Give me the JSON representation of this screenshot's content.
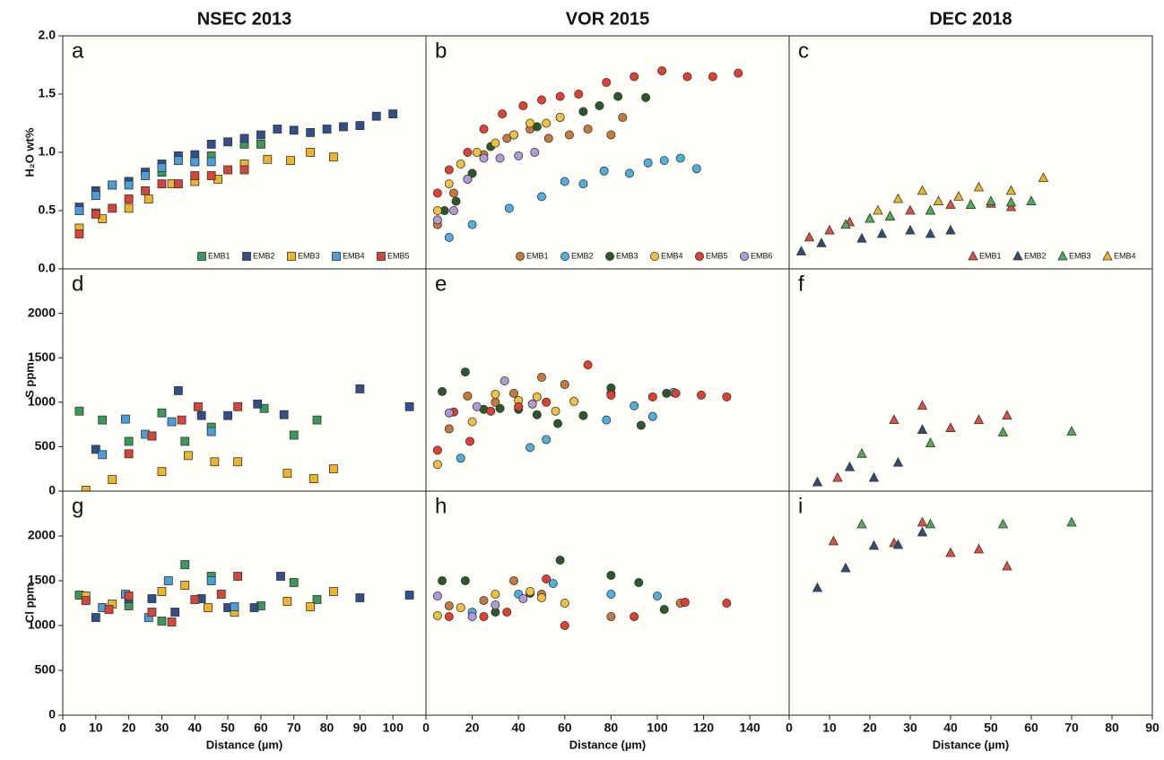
{
  "chart_data": [
    {
      "type": "scatter",
      "label": "a",
      "title": "NSEC 2013",
      "ylabel": "H₂O wt%",
      "marker": "square",
      "legend": "bottom right",
      "xlim": [
        0,
        110
      ],
      "ylim": [
        0,
        2
      ],
      "yticks": [
        {
          "value": 0,
          "label": "0.0"
        },
        0.5,
        {
          "value": 1,
          "label": "1.0"
        },
        1.5,
        {
          "value": 2,
          "label": "2.0"
        }
      ],
      "series": [
        {
          "name": "EMB1",
          "color": "#3a9a5a",
          "x": [
            5,
            10,
            20,
            30,
            40,
            45,
            55,
            60
          ],
          "y": [
            0.5,
            0.48,
            0.75,
            0.83,
            0.92,
            0.97,
            1.07,
            1.07
          ]
        },
        {
          "name": "EMB2",
          "color": "#2f4f8f",
          "x": [
            5,
            10,
            15,
            20,
            25,
            30,
            35,
            40,
            45,
            50,
            55,
            60,
            65,
            70,
            75,
            80,
            85,
            90,
            95,
            100
          ],
          "y": [
            0.53,
            0.67,
            0.72,
            0.75,
            0.83,
            0.9,
            0.97,
            0.98,
            1.07,
            1.09,
            1.12,
            1.15,
            1.2,
            1.19,
            1.17,
            1.2,
            1.22,
            1.23,
            1.31,
            1.33
          ]
        },
        {
          "name": "EMB3",
          "color": "#f0b429",
          "x": [
            5,
            12,
            20,
            26,
            33,
            40,
            47,
            55,
            62,
            69,
            75,
            82
          ],
          "y": [
            0.35,
            0.43,
            0.52,
            0.6,
            0.73,
            0.75,
            0.77,
            0.9,
            0.94,
            0.93,
            1.0,
            0.96
          ]
        },
        {
          "name": "EMB4",
          "color": "#4a9fd8",
          "x": [
            5,
            10,
            15,
            20,
            25,
            30,
            35,
            40,
            45
          ],
          "y": [
            0.5,
            0.63,
            0.72,
            0.72,
            0.8,
            0.87,
            0.93,
            0.92,
            0.92
          ]
        },
        {
          "name": "EMB5",
          "color": "#d9443a",
          "x": [
            5,
            10,
            15,
            20,
            25,
            30,
            35,
            40,
            45,
            50,
            55
          ],
          "y": [
            0.3,
            0.47,
            0.52,
            0.6,
            0.67,
            0.73,
            0.73,
            0.8,
            0.8,
            0.85,
            0.85
          ]
        }
      ]
    },
    {
      "type": "scatter",
      "label": "b",
      "title": "VOR 2015",
      "marker": "circle",
      "legend": "bottom right",
      "xlim": [
        0,
        157
      ],
      "ylim": [
        0,
        2
      ],
      "series": [
        {
          "name": "EMB1",
          "color": "#c87a3a",
          "x": [
            5,
            12,
            18,
            25,
            35,
            45,
            53,
            62,
            70,
            80,
            85
          ],
          "y": [
            0.38,
            0.65,
            0.77,
            0.98,
            1.12,
            1.2,
            1.12,
            1.15,
            1.2,
            1.15,
            1.3
          ]
        },
        {
          "name": "EMB2",
          "color": "#4fb0e0",
          "x": [
            10,
            20,
            36,
            50,
            60,
            68,
            77,
            88,
            96,
            103,
            110,
            117
          ],
          "y": [
            0.27,
            0.38,
            0.52,
            0.62,
            0.75,
            0.73,
            0.84,
            0.82,
            0.91,
            0.93,
            0.95,
            0.86
          ]
        },
        {
          "name": "EMB3",
          "color": "#2a5a2a",
          "x": [
            8,
            13,
            20,
            28,
            38,
            48,
            58,
            68,
            75,
            83,
            95
          ],
          "y": [
            0.5,
            0.58,
            0.82,
            1.05,
            1.15,
            1.22,
            1.3,
            1.35,
            1.4,
            1.48,
            1.47
          ]
        },
        {
          "name": "EMB4",
          "color": "#f0c040",
          "x": [
            5,
            10,
            15,
            22,
            30,
            38,
            45,
            52,
            58
          ],
          "y": [
            0.5,
            0.73,
            0.9,
            1.0,
            1.08,
            1.15,
            1.25,
            1.25,
            1.3
          ]
        },
        {
          "name": "EMB5",
          "color": "#e04030",
          "x": [
            5,
            10,
            18,
            25,
            33,
            42,
            50,
            58,
            66,
            78,
            90,
            102,
            113,
            124,
            135
          ],
          "y": [
            0.65,
            0.85,
            1.0,
            1.2,
            1.33,
            1.4,
            1.45,
            1.48,
            1.5,
            1.6,
            1.65,
            1.7,
            1.65,
            1.65,
            1.68
          ]
        },
        {
          "name": "EMB6",
          "color": "#b09ad8",
          "x": [
            5,
            12,
            18,
            25,
            32,
            40,
            47
          ],
          "y": [
            0.42,
            0.5,
            0.77,
            0.95,
            0.95,
            0.97,
            1.0
          ]
        }
      ]
    },
    {
      "type": "scatter",
      "label": "c",
      "title": "DEC 2018",
      "marker": "triangle",
      "legend": "bottom right",
      "xlim": [
        0,
        90
      ],
      "ylim": [
        0,
        2
      ],
      "series": [
        {
          "name": "EMB1",
          "color": "#e05040",
          "x": [
            5,
            10,
            15,
            20,
            25,
            30,
            35,
            40,
            45,
            50,
            55
          ],
          "y": [
            0.27,
            0.33,
            0.4,
            0.43,
            0.45,
            0.5,
            0.5,
            0.55,
            0.55,
            0.56,
            0.53
          ]
        },
        {
          "name": "EMB2",
          "color": "#2e4d7a",
          "x": [
            3,
            8,
            18,
            23,
            30,
            35,
            40
          ],
          "y": [
            0.15,
            0.22,
            0.26,
            0.3,
            0.33,
            0.3,
            0.33
          ]
        },
        {
          "name": "EMB3",
          "color": "#4caf50",
          "x": [
            14,
            20,
            25,
            35,
            45,
            50,
            55,
            60
          ],
          "y": [
            0.38,
            0.43,
            0.45,
            0.5,
            0.55,
            0.58,
            0.57,
            0.58
          ]
        },
        {
          "name": "EMB4",
          "color": "#f0b429",
          "x": [
            22,
            27,
            33,
            37,
            42,
            47,
            55,
            63
          ],
          "y": [
            0.5,
            0.6,
            0.67,
            0.58,
            0.62,
            0.7,
            0.67,
            0.78
          ]
        }
      ]
    },
    {
      "type": "scatter",
      "label": "d",
      "ylabel": "S ppm",
      "marker": "square",
      "xlim": [
        0,
        110
      ],
      "ylim": [
        0,
        2500
      ],
      "yticks": [
        0,
        500,
        1000,
        1500,
        2000
      ],
      "series": [
        {
          "color": "#3a9a5a",
          "x": [
            5,
            12,
            20,
            30,
            37,
            45,
            61,
            70,
            77
          ],
          "y": [
            900,
            800,
            560,
            880,
            560,
            720,
            930,
            630,
            800
          ]
        },
        {
          "color": "#2f4f8f",
          "x": [
            10,
            27,
            35,
            42,
            50,
            59,
            67,
            90,
            105
          ],
          "y": [
            470,
            620,
            1130,
            850,
            850,
            980,
            860,
            1150,
            950
          ]
        },
        {
          "color": "#f0b429",
          "x": [
            7,
            15,
            30,
            38,
            46,
            53,
            68,
            76,
            82
          ],
          "y": [
            10,
            130,
            220,
            400,
            330,
            330,
            200,
            140,
            250
          ]
        },
        {
          "color": "#4a9fd8",
          "x": [
            12,
            19,
            25,
            33,
            45
          ],
          "y": [
            410,
            810,
            640,
            780,
            670
          ]
        },
        {
          "color": "#d9443a",
          "x": [
            20,
            27,
            36,
            41,
            53
          ],
          "y": [
            420,
            620,
            800,
            950,
            950
          ]
        }
      ]
    },
    {
      "type": "scatter",
      "label": "e",
      "marker": "circle",
      "xlim": [
        0,
        157
      ],
      "ylim": [
        0,
        2500
      ],
      "series": [
        {
          "color": "#c87a3a",
          "x": [
            10,
            18,
            30,
            38,
            50,
            60,
            80
          ],
          "y": [
            700,
            1070,
            1000,
            1100,
            1280,
            1200,
            1100
          ]
        },
        {
          "color": "#4fb0e0",
          "x": [
            15,
            45,
            52,
            78,
            90,
            98,
            107
          ],
          "y": [
            370,
            490,
            580,
            800,
            960,
            840,
            1110
          ]
        },
        {
          "color": "#2a5a2a",
          "x": [
            7,
            17,
            25,
            32,
            40,
            48,
            57,
            68,
            80,
            93,
            104
          ],
          "y": [
            1120,
            1340,
            920,
            930,
            920,
            860,
            760,
            850,
            1160,
            740,
            1100
          ]
        },
        {
          "color": "#f0c040",
          "x": [
            5,
            20,
            30,
            40,
            48,
            56,
            64
          ],
          "y": [
            300,
            780,
            1090,
            1020,
            1060,
            900,
            1010
          ]
        },
        {
          "color": "#e04030",
          "x": [
            5,
            12,
            19,
            28,
            40,
            52,
            70,
            80,
            98,
            108,
            119,
            130
          ],
          "y": [
            460,
            890,
            560,
            900,
            950,
            1000,
            1420,
            1080,
            1060,
            1100,
            1080,
            1060
          ]
        },
        {
          "color": "#b09ad8",
          "x": [
            10,
            22,
            34,
            46
          ],
          "y": [
            880,
            950,
            1240,
            980
          ]
        }
      ]
    },
    {
      "type": "scatter",
      "label": "f",
      "marker": "triangle",
      "xlim": [
        0,
        90
      ],
      "ylim": [
        0,
        2500
      ],
      "series": [
        {
          "color": "#e05040",
          "x": [
            12,
            26,
            33,
            40,
            47,
            54
          ],
          "y": [
            150,
            800,
            960,
            710,
            800,
            850
          ]
        },
        {
          "color": "#2e4d7a",
          "x": [
            7,
            15,
            21,
            27,
            33
          ],
          "y": [
            100,
            270,
            150,
            320,
            690
          ]
        },
        {
          "color": "#4caf50",
          "x": [
            18,
            35,
            53,
            70
          ],
          "y": [
            420,
            540,
            660,
            670
          ]
        }
      ]
    },
    {
      "type": "scatter",
      "label": "g",
      "ylabel": "Cl ppm",
      "xlabel": "Distance (µm)",
      "marker": "square",
      "xlim": [
        0,
        110
      ],
      "ylim": [
        0,
        2500
      ],
      "yticks": [
        0,
        500,
        1000,
        1500,
        2000
      ],
      "xticks": [
        0,
        10,
        20,
        30,
        40,
        50,
        60,
        70,
        80,
        90,
        100
      ],
      "series": [
        {
          "color": "#3a9a5a",
          "x": [
            5,
            20,
            30,
            37,
            45,
            60,
            70,
            77
          ],
          "y": [
            1340,
            1220,
            1050,
            1680,
            1550,
            1220,
            1480,
            1290
          ]
        },
        {
          "color": "#2f4f8f",
          "x": [
            10,
            20,
            27,
            34,
            42,
            50,
            58,
            66,
            90,
            105
          ],
          "y": [
            1090,
            1300,
            1300,
            1150,
            1300,
            1200,
            1200,
            1550,
            1310,
            1340
          ]
        },
        {
          "color": "#f0b429",
          "x": [
            7,
            15,
            30,
            37,
            44,
            52,
            68,
            75,
            82
          ],
          "y": [
            1330,
            1240,
            1380,
            1450,
            1200,
            1150,
            1270,
            1210,
            1380
          ]
        },
        {
          "color": "#4a9fd8",
          "x": [
            12,
            19,
            26,
            32,
            45,
            52
          ],
          "y": [
            1200,
            1350,
            1090,
            1500,
            1500,
            1210
          ]
        },
        {
          "color": "#d9443a",
          "x": [
            7,
            14,
            20,
            27,
            33,
            40,
            48,
            53
          ],
          "y": [
            1280,
            1180,
            1330,
            1150,
            1040,
            1290,
            1350,
            1550
          ]
        }
      ]
    },
    {
      "type": "scatter",
      "label": "h",
      "xlabel": "Distance (µm)",
      "marker": "circle",
      "xlim": [
        0,
        157
      ],
      "ylim": [
        0,
        2500
      ],
      "xticks": [
        0,
        20,
        40,
        60,
        80,
        100,
        120,
        140
      ],
      "series": [
        {
          "color": "#c87a3a",
          "x": [
            10,
            25,
            38,
            50,
            80,
            110
          ],
          "y": [
            1220,
            1280,
            1500,
            1350,
            1100,
            1250
          ]
        },
        {
          "color": "#4fb0e0",
          "x": [
            20,
            40,
            55,
            80,
            100
          ],
          "y": [
            1150,
            1350,
            1470,
            1350,
            1330
          ]
        },
        {
          "color": "#2a5a2a",
          "x": [
            7,
            17,
            30,
            45,
            58,
            80,
            92,
            103
          ],
          "y": [
            1500,
            1500,
            1150,
            1360,
            1730,
            1560,
            1480,
            1180
          ]
        },
        {
          "color": "#f0c040",
          "x": [
            5,
            15,
            30,
            45,
            50,
            60
          ],
          "y": [
            1110,
            1200,
            1350,
            1380,
            1310,
            1250
          ]
        },
        {
          "color": "#e04030",
          "x": [
            10,
            25,
            35,
            52,
            60,
            90,
            112,
            130
          ],
          "y": [
            1100,
            1100,
            1150,
            1520,
            1000,
            1100,
            1260,
            1250
          ]
        },
        {
          "color": "#b09ad8",
          "x": [
            5,
            20,
            30,
            42
          ],
          "y": [
            1330,
            1100,
            1230,
            1300
          ]
        }
      ]
    },
    {
      "type": "scatter",
      "label": "i",
      "xlabel": "Distance (µm)",
      "marker": "triangle",
      "xlim": [
        0,
        90
      ],
      "ylim": [
        0,
        2500
      ],
      "xticks": [
        0,
        10,
        20,
        30,
        40,
        50,
        60,
        70,
        80,
        90
      ],
      "series": [
        {
          "color": "#e05040",
          "x": [
            11,
            26,
            33,
            40,
            47,
            54
          ],
          "y": [
            1940,
            1920,
            2150,
            1810,
            1850,
            1660
          ]
        },
        {
          "color": "#2e4d7a",
          "x": [
            7,
            14,
            21,
            27,
            33
          ],
          "y": [
            1420,
            1640,
            1890,
            1900,
            2040
          ]
        },
        {
          "color": "#4caf50",
          "x": [
            18,
            35,
            53,
            70
          ],
          "y": [
            2130,
            2130,
            2130,
            2150
          ]
        }
      ]
    }
  ]
}
